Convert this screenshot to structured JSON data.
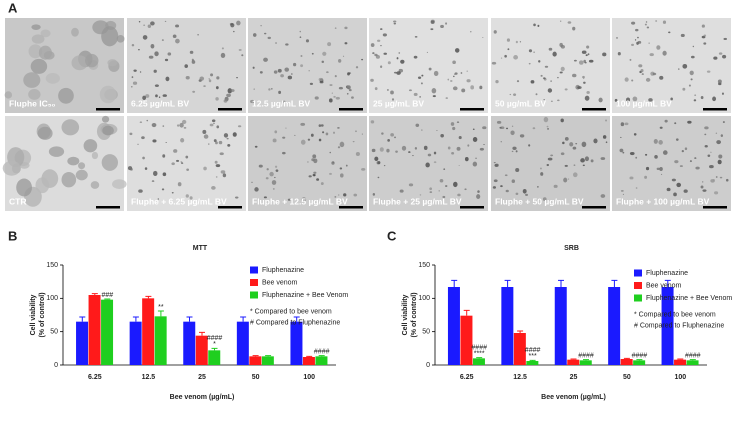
{
  "panel_a": {
    "label": "A",
    "images": [
      {
        "label": "Fluphe IC₅₀"
      },
      {
        "label": "6.25 µg/mL BV"
      },
      {
        "label": "12.5 µg/mL BV"
      },
      {
        "label": "25 µg/mL BV"
      },
      {
        "label": "50 µg/mL BV"
      },
      {
        "label": "100 µg/mL BV"
      },
      {
        "label": "CTR"
      },
      {
        "label": "Fluphe + 6.25 µg/mL BV"
      },
      {
        "label": "Fluphe + 12.5 µg/mL BV"
      },
      {
        "label": "Fluphe + 25 µg/mL BV"
      },
      {
        "label": "Fluphe + 50 µg/mL BV"
      },
      {
        "label": "Fluphe + 100 µg/mL BV"
      }
    ]
  },
  "chart_data": [
    {
      "type": "bar",
      "panel": "B",
      "title": "MTT",
      "x_label": "Bee venom (µg/mL)",
      "y_label": "Cell viability (% of control)",
      "categories": [
        "6.25",
        "12.5",
        "25",
        "50",
        "100"
      ],
      "series": [
        {
          "name": "Fluphenazine",
          "color": "#1a1aff",
          "values": [
            65,
            65,
            65,
            65,
            65
          ],
          "errors": [
            7,
            7,
            7,
            7,
            7
          ]
        },
        {
          "name": "Bee venom",
          "color": "#ff1a1a",
          "values": [
            105,
            100,
            44,
            13,
            12
          ],
          "errors": [
            2,
            3,
            5,
            1,
            1
          ]
        },
        {
          "name": "Fluphenazine + Bee Venom",
          "color": "#1fcf1f",
          "values": [
            98,
            73,
            22,
            13,
            13
          ],
          "errors": [
            1,
            8,
            3,
            1,
            1
          ],
          "annotations": [
            [
              "###"
            ],
            [
              "**"
            ],
            [
              "####",
              "*"
            ],
            null,
            [
              "####"
            ]
          ]
        }
      ],
      "notes": [
        "* Compared to bee venom",
        "# Compared to Fluphenazine"
      ],
      "ylim": [
        0,
        150
      ],
      "yticks": [
        0,
        50,
        100,
        150
      ]
    },
    {
      "type": "bar",
      "panel": "C",
      "title": "SRB",
      "x_label": "Bee venom (µg/mL)",
      "y_label": "Cell viability (% of control)",
      "categories": [
        "6.25",
        "12.5",
        "25",
        "50",
        "100"
      ],
      "series": [
        {
          "name": "Fluphenazine",
          "color": "#1a1aff",
          "values": [
            117,
            117,
            117,
            117,
            117
          ],
          "errors": [
            10,
            10,
            10,
            10,
            10
          ]
        },
        {
          "name": "Bee venom",
          "color": "#ff1a1a",
          "values": [
            74,
            48,
            8,
            9,
            8
          ],
          "errors": [
            8,
            3,
            1,
            1,
            1
          ]
        },
        {
          "name": "Fluphenazine + Bee Venom",
          "color": "#1fcf1f",
          "values": [
            10,
            6,
            7,
            7,
            7
          ],
          "errors": [
            1,
            1,
            1,
            1,
            1
          ],
          "annotations": [
            [
              "####",
              "****"
            ],
            [
              "####",
              "***"
            ],
            [
              "####"
            ],
            [
              "####"
            ],
            [
              "####"
            ]
          ]
        }
      ],
      "notes": [
        "* Compared to bee venom",
        "# Compared to Fluphenazine"
      ],
      "ylim": [
        0,
        150
      ],
      "yticks": [
        0,
        50,
        100,
        150
      ]
    }
  ]
}
